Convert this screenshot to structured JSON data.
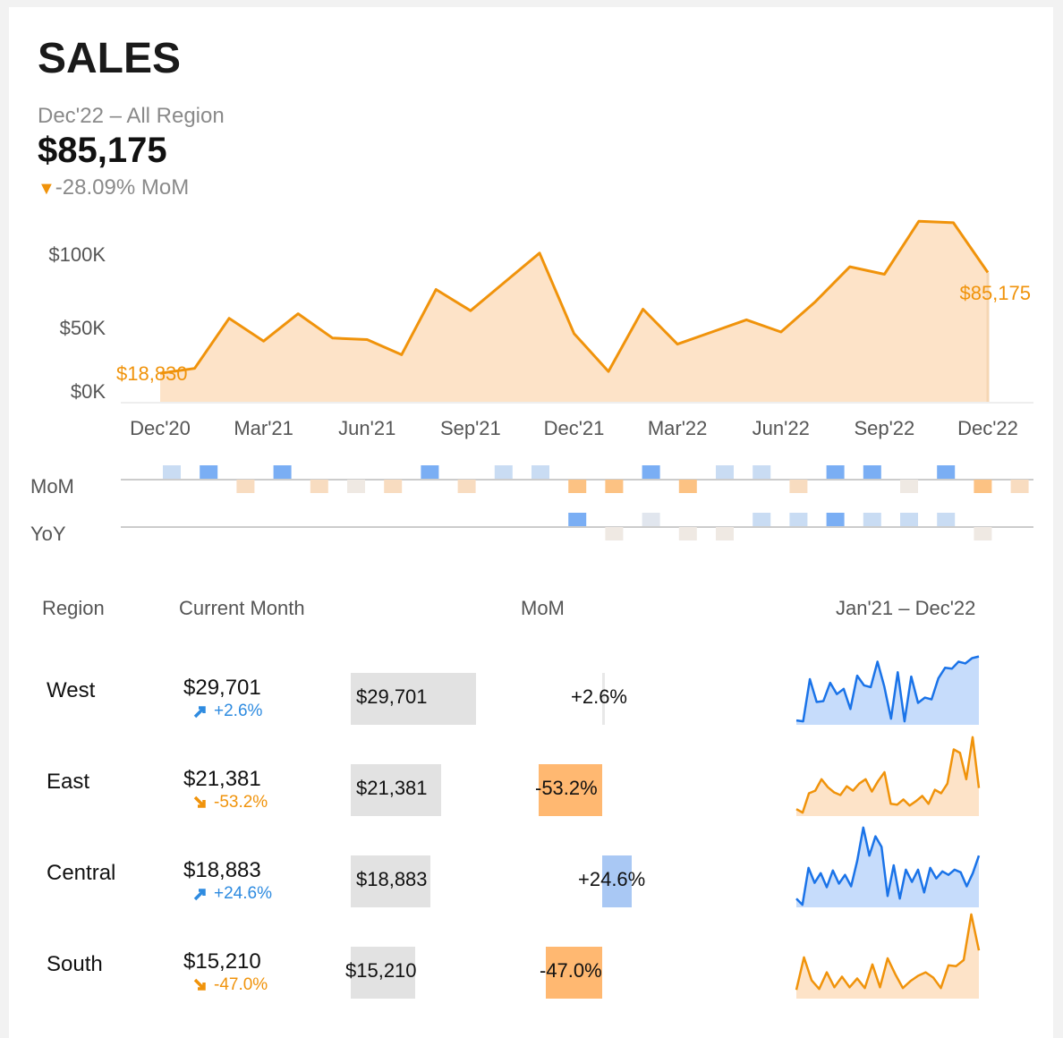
{
  "header": {
    "title": "SALES",
    "subtitle": "Dec'22 – All Region",
    "kpi_value": "$85,175",
    "kpi_change": "-28.09% MoM"
  },
  "colors": {
    "orange": "#f0930b",
    "orange_fill": "#fde3c8",
    "blue": "#1a73e8",
    "blue_fill": "#c6dcfb",
    "bar_gray": "#e2e2e2",
    "mom_orange": "#ffb871",
    "mom_blue": "#a9c8f4"
  },
  "chart_data": [
    {
      "type": "area",
      "title": "",
      "x": [
        "Dec'20",
        "Jan'21",
        "Feb'21",
        "Mar'21",
        "Apr'21",
        "May'21",
        "Jun'21",
        "Jul'21",
        "Aug'21",
        "Sep'21",
        "Oct'21",
        "Nov'21",
        "Dec'21",
        "Jan'22",
        "Feb'22",
        "Mar'22",
        "Apr'22",
        "May'22",
        "Jun'22",
        "Jul'22",
        "Aug'22",
        "Sep'22",
        "Oct'22",
        "Nov'22",
        "Dec'22"
      ],
      "values": [
        18830,
        22000,
        55000,
        40000,
        58000,
        42000,
        41000,
        31000,
        74000,
        60000,
        79000,
        98000,
        45000,
        20000,
        61000,
        38000,
        46000,
        54000,
        46000,
        66000,
        89000,
        84000,
        119000,
        118000,
        85175
      ],
      "xticks": [
        "Dec'20",
        "Mar'21",
        "Jun'21",
        "Sep'21",
        "Dec'21",
        "Mar'22",
        "Jun'22",
        "Sep'22",
        "Dec'22"
      ],
      "yticks": [
        "$0K",
        "$50K",
        "$100K"
      ],
      "ylim": [
        0,
        125000
      ],
      "start_label": "$18,830",
      "end_label": "$85,175",
      "grid": false
    },
    {
      "type": "heatmap",
      "rows": [
        "MoM",
        "YoY"
      ],
      "x": [
        "Jan'21",
        "Feb'21",
        "Mar'21",
        "Apr'21",
        "May'21",
        "Jun'21",
        "Jul'21",
        "Aug'21",
        "Sep'21",
        "Oct'21",
        "Nov'21",
        "Dec'21",
        "Jan'22",
        "Feb'22",
        "Mar'22",
        "Apr'22",
        "May'22",
        "Jun'22",
        "Jul'22",
        "Aug'22",
        "Sep'22",
        "Oct'22",
        "Nov'22",
        "Dec'22"
      ],
      "mom_sign": [
        1,
        2,
        -1,
        2,
        -1,
        -0.5,
        -1,
        2,
        -1,
        1,
        1,
        -2,
        -2,
        2,
        -2,
        1,
        1,
        -1,
        2,
        2,
        -0.5,
        2,
        -2,
        -1
      ],
      "yoy_sign": [
        0,
        0,
        0,
        0,
        0,
        0,
        0,
        0,
        0,
        0,
        0,
        2,
        -0.5,
        0.5,
        -0.5,
        -0.5,
        1,
        1,
        2,
        1,
        1,
        1,
        -0.5,
        0
      ]
    },
    {
      "type": "table",
      "columns": [
        "Region",
        "Current Month",
        "MoM",
        "Jan'21 – Dec'22"
      ],
      "rows": [
        {
          "region": "West",
          "value": "$29,701",
          "amount": 29701,
          "mom": "+2.6%",
          "mom_pct": 2.6,
          "dir": "up",
          "spark": [
            5,
            4,
            52,
            26,
            27,
            48,
            35,
            41,
            18,
            56,
            45,
            43,
            72,
            44,
            7,
            60,
            4,
            55,
            25,
            31,
            29,
            53,
            65,
            64,
            72,
            70,
            76,
            78
          ]
        },
        {
          "region": "East",
          "value": "$21,381",
          "amount": 21381,
          "mom": "-53.2%",
          "mom_pct": -53.2,
          "dir": "down",
          "spark": [
            8,
            4,
            26,
            29,
            42,
            33,
            27,
            24,
            34,
            29,
            37,
            42,
            28,
            40,
            50,
            14,
            13,
            19,
            12,
            17,
            23,
            14,
            30,
            26,
            37,
            76,
            72,
            42,
            90,
            32
          ]
        },
        {
          "region": "Central",
          "value": "$18,883",
          "amount": 18883,
          "mom": "+24.6%",
          "mom_pct": 24.6,
          "dir": "up",
          "spark": [
            10,
            3,
            45,
            28,
            39,
            23,
            42,
            27,
            37,
            24,
            53,
            91,
            59,
            81,
            69,
            13,
            48,
            10,
            43,
            29,
            43,
            17,
            45,
            33,
            41,
            37,
            43,
            40,
            24,
            39,
            59
          ]
        },
        {
          "region": "South",
          "value": "$15,210",
          "amount": 15210,
          "mom": "-47.0%",
          "mom_pct": -47.0,
          "dir": "down",
          "spark": [
            10,
            47,
            21,
            11,
            30,
            13,
            25,
            13,
            23,
            12,
            39,
            13,
            46,
            28,
            12,
            20,
            26,
            30,
            24,
            12,
            38,
            37,
            44,
            96,
            55
          ]
        }
      ]
    }
  ]
}
